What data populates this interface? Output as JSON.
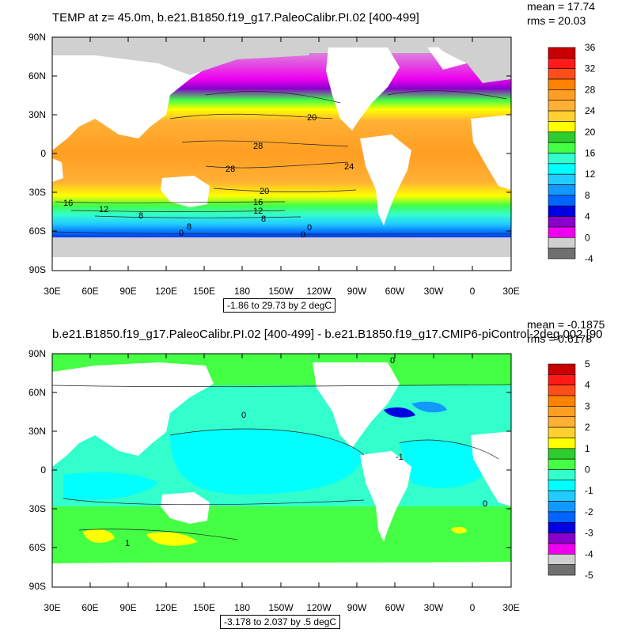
{
  "panels": [
    {
      "id": "top",
      "title": "TEMP at z=  45.0m, b.e21.B1850.f19_g17.PaleoCalibr.PI.02 [400-499]",
      "mean": "mean = 17.74",
      "rms": "rms = 20.03",
      "range": "-1.86 to 29.73 by 2 degC",
      "lat_labels": [
        "90N",
        "60N",
        "30N",
        "0",
        "30S",
        "60S",
        "90S"
      ],
      "lon_labels": [
        "30E",
        "60E",
        "90E",
        "120E",
        "150E",
        "180",
        "150W",
        "120W",
        "90W",
        "60W",
        "30W",
        "0",
        "30E"
      ],
      "colorbar_labels": [
        "36",
        "32",
        "28",
        "24",
        "20",
        "16",
        "12",
        "8",
        "4",
        "0",
        "-4"
      ],
      "colorbar_colors": [
        "#c80000",
        "#ff1a1a",
        "#ff4d1a",
        "#ff8200",
        "#ff9e22",
        "#ffb035",
        "#ffd030",
        "#ffff00",
        "#2ecc2e",
        "#44ff44",
        "#33ffcc",
        "#00ffff",
        "#22ccff",
        "#1199ff",
        "#0066ff",
        "#0000e0",
        "#8800cc",
        "#ee00ee",
        "#d0d0d0",
        "#707070"
      ],
      "contour_labels": [
        "20",
        "28",
        "28",
        "24",
        "20",
        "16",
        "16",
        "12",
        "12",
        "8",
        "8",
        "0",
        "0",
        "0",
        "8"
      ]
    },
    {
      "id": "bottom",
      "title": "b.e21.B1850.f19_g17.PaleoCalibr.PI.02 [400-499] - b.e21.B1850.f19_g17.CMIP6-piControl-2deg.002 [90",
      "mean": "mean = -0.1875",
      "rms": "rms = 0.6178",
      "range": "-3.178 to 2.037 by .5 degC",
      "lat_labels": [
        "90N",
        "60N",
        "30N",
        "0",
        "30S",
        "60S",
        "90S"
      ],
      "lon_labels": [
        "30E",
        "60E",
        "90E",
        "120E",
        "150E",
        "180",
        "150W",
        "120W",
        "90W",
        "60W",
        "30W",
        "0",
        "30E"
      ],
      "colorbar_labels": [
        "5",
        "4",
        "3",
        "2",
        "1",
        "0",
        "-1",
        "-2",
        "-3",
        "-4",
        "-5"
      ],
      "colorbar_colors": [
        "#c80000",
        "#ff1a1a",
        "#ff4d1a",
        "#ff8200",
        "#ff9e22",
        "#ffb035",
        "#ffd030",
        "#ffff00",
        "#2ecc2e",
        "#44ff44",
        "#33ffcc",
        "#00ffff",
        "#22ccff",
        "#1199ff",
        "#0066ff",
        "#0000e0",
        "#8800cc",
        "#ee00ee",
        "#d0d0d0",
        "#707070"
      ],
      "contour_labels": [
        "0",
        "0",
        "-1",
        "0",
        "1"
      ]
    }
  ]
}
